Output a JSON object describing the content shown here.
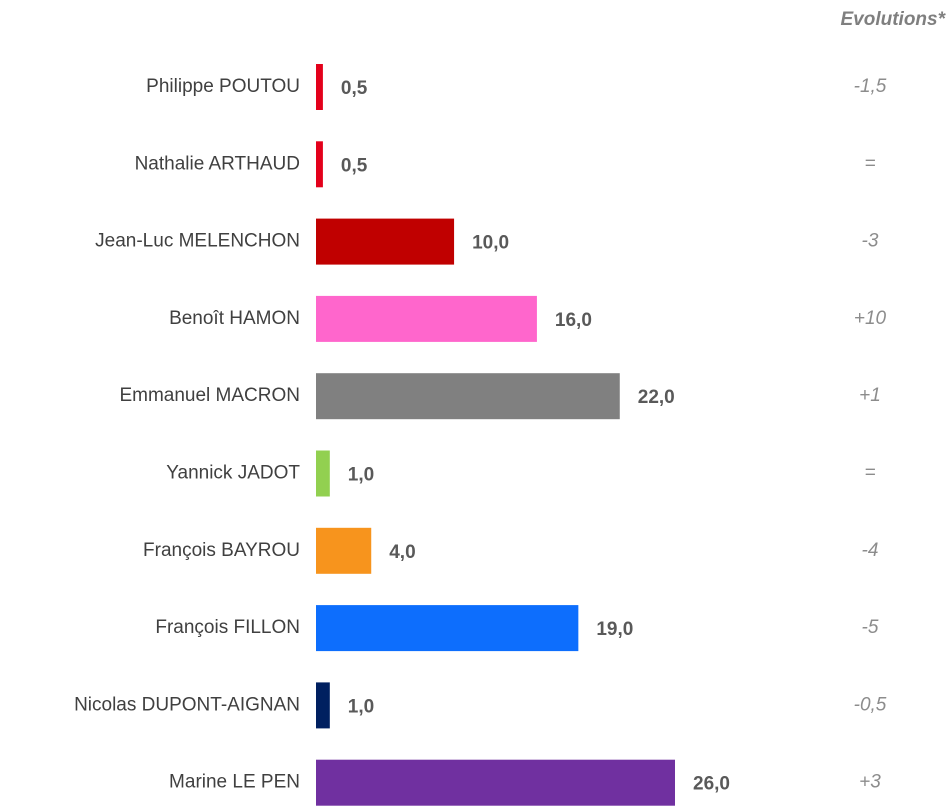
{
  "chart_data": {
    "type": "hbar",
    "categories": [
      "Philippe POUTOU",
      "Nathalie ARTHAUD",
      "Jean-Luc MELENCHON",
      "Benoît HAMON",
      "Emmanuel MACRON",
      "Yannick JADOT",
      "François BAYROU",
      "François FILLON",
      "Nicolas DUPONT-AIGNAN",
      "Marine LE PEN"
    ],
    "values": [
      0.5,
      0.5,
      10,
      16,
      22,
      1,
      4,
      19,
      1,
      26
    ],
    "value_labels": [
      "0,5",
      "0,5",
      "10,0",
      "16,0",
      "22,0",
      "1,0",
      "4,0",
      "19,0",
      "1,0",
      "26,0"
    ],
    "colors": [
      "#e3001b",
      "#e3001b",
      "#c00000",
      "#ff66cc",
      "#808080",
      "#92d050",
      "#f7941d",
      "#0d6efd",
      "#002060",
      "#7030a0"
    ],
    "evolutions": {
      "title": "Evolutions*",
      "labels": [
        "-1,5",
        "=",
        "-3",
        "+10",
        "+1",
        "=",
        "-4",
        "-5",
        "-0,5",
        "+3"
      ]
    }
  }
}
